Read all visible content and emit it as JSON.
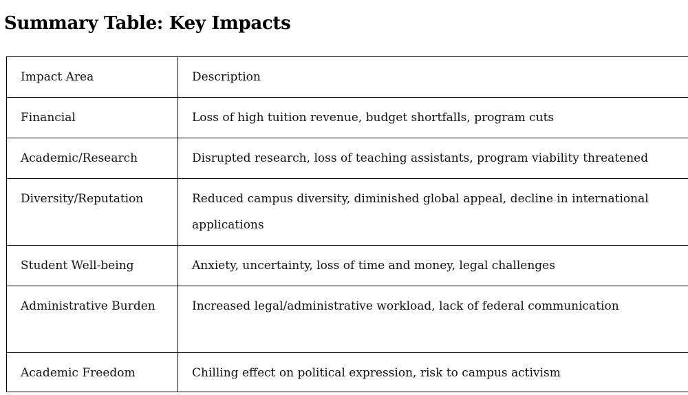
{
  "document": {
    "title": "Summary Table: Key Impacts"
  },
  "table": {
    "headers": [
      "Impact Area",
      "Description"
    ],
    "rows": [
      {
        "area": "Financial",
        "description": "Loss of high tuition revenue, budget shortfalls, program cuts"
      },
      {
        "area": "Academic/Research",
        "description": "Disrupted research, loss of teaching assistants, program viability threatened"
      },
      {
        "area": "Diversity/Reputation",
        "description": "Reduced campus diversity, diminished global appeal, decline in international applications"
      },
      {
        "area": "Student Well-being",
        "description": "Anxiety, uncertainty, loss of time and money, legal challenges"
      },
      {
        "area": "Administrative Burden",
        "description": "Increased legal/administrative workload, lack of federal communication"
      },
      {
        "area": "Academic Freedom",
        "description": "Chilling effect on political expression, risk to campus activism"
      }
    ]
  }
}
